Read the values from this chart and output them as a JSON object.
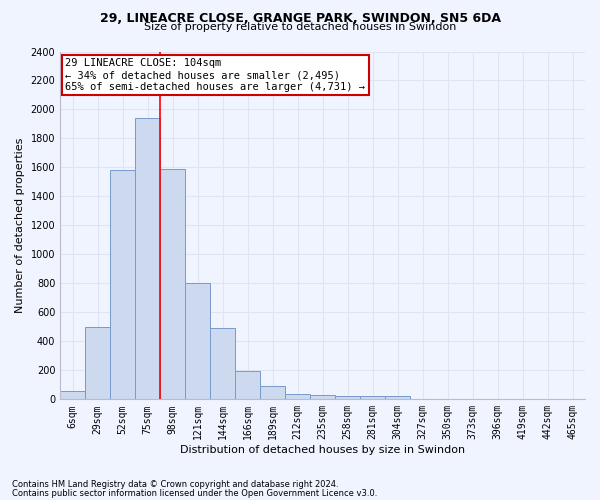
{
  "title_line1": "29, LINEACRE CLOSE, GRANGE PARK, SWINDON, SN5 6DA",
  "title_line2": "Size of property relative to detached houses in Swindon",
  "xlabel": "Distribution of detached houses by size in Swindon",
  "ylabel": "Number of detached properties",
  "categories": [
    "6sqm",
    "29sqm",
    "52sqm",
    "75sqm",
    "98sqm",
    "121sqm",
    "144sqm",
    "166sqm",
    "189sqm",
    "212sqm",
    "235sqm",
    "258sqm",
    "281sqm",
    "304sqm",
    "327sqm",
    "350sqm",
    "373sqm",
    "396sqm",
    "419sqm",
    "442sqm",
    "465sqm"
  ],
  "values": [
    55,
    500,
    1580,
    1940,
    1590,
    800,
    490,
    195,
    90,
    40,
    30,
    20,
    20,
    20,
    0,
    0,
    0,
    0,
    0,
    0,
    0
  ],
  "bar_color": "#ccd9ee",
  "bar_edge_color": "#7799cc",
  "red_line_index": 3.5,
  "annotation_line1": "29 LINEACRE CLOSE: 104sqm",
  "annotation_line2": "← 34% of detached houses are smaller (2,495)",
  "annotation_line3": "65% of semi-detached houses are larger (4,731) →",
  "annotation_box_color": "#ffffff",
  "annotation_box_edgecolor": "#cc0000",
  "ylim": [
    0,
    2400
  ],
  "yticks": [
    0,
    200,
    400,
    600,
    800,
    1000,
    1200,
    1400,
    1600,
    1800,
    2000,
    2200,
    2400
  ],
  "footer1": "Contains HM Land Registry data © Crown copyright and database right 2024.",
  "footer2": "Contains public sector information licensed under the Open Government Licence v3.0.",
  "bg_color": "#f0f4ff",
  "grid_color": "#dde5f5",
  "title_fontsize": 9,
  "subtitle_fontsize": 8,
  "xlabel_fontsize": 8,
  "ylabel_fontsize": 8,
  "tick_fontsize": 7,
  "footer_fontsize": 6,
  "annotation_fontsize": 7.5
}
